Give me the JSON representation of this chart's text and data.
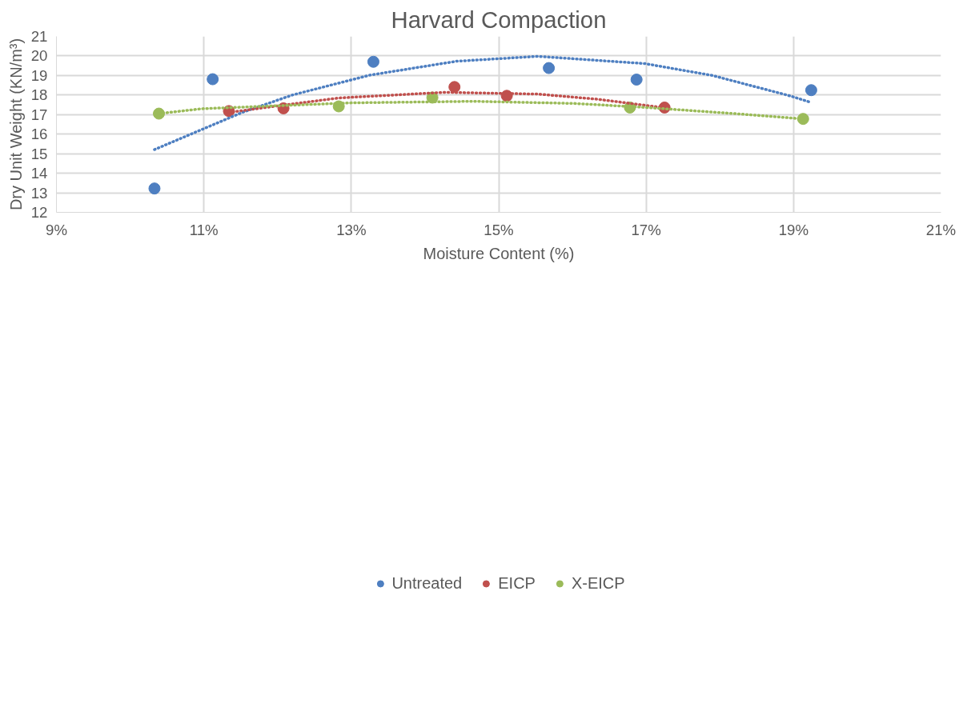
{
  "chart_data": {
    "type": "scatter",
    "title": "Harvard Compaction",
    "xlabel": "Moisture Content (%)",
    "ylabel": "Dry Unit Weight (KN/m³)",
    "xlim": [
      9,
      21
    ],
    "ylim": [
      12,
      21
    ],
    "xticks": [
      {
        "value": 9,
        "label": "9%"
      },
      {
        "value": 11,
        "label": "11%"
      },
      {
        "value": 13,
        "label": "13%"
      },
      {
        "value": 15,
        "label": "15%"
      },
      {
        "value": 17,
        "label": "17%"
      },
      {
        "value": 19,
        "label": "19%"
      },
      {
        "value": 21,
        "label": "21%"
      }
    ],
    "yticks": [
      12,
      13,
      14,
      15,
      16,
      17,
      18,
      19,
      20,
      21
    ],
    "grid": true,
    "legend": "bottom",
    "marker": "circle",
    "series": [
      {
        "name": "Untreated",
        "color": "#4e7fc1",
        "x": [
          10.33,
          11.12,
          13.3,
          15.68,
          16.87,
          19.24
        ],
        "values": [
          13.22,
          18.81,
          19.7,
          19.38,
          18.79,
          18.25
        ]
      },
      {
        "name": "EICP",
        "color": "#c0504d",
        "x": [
          11.34,
          12.08,
          14.4,
          15.11,
          17.25
        ],
        "values": [
          17.18,
          17.32,
          18.41,
          17.96,
          17.36
        ]
      },
      {
        "name": "X-EICP",
        "color": "#9bbb59",
        "x": [
          10.39,
          12.83,
          14.1,
          16.78,
          19.13
        ],
        "values": [
          17.05,
          17.42,
          17.87,
          17.36,
          16.78
        ]
      },
      {
        "type": "line",
        "line_style": "dotted",
        "marker": "none",
        "color": "#4e7fc1",
        "x": [
          10.33,
          11.52,
          12.2,
          13.24,
          14.43,
          15.53,
          16.98,
          17.9,
          18.95,
          19.23
        ],
        "values": [
          15.21,
          17.11,
          18.0,
          19.01,
          19.73,
          19.98,
          19.61,
          19.0,
          17.96,
          17.63
        ]
      },
      {
        "type": "line",
        "line_style": "dotted",
        "marker": "none",
        "color": "#c0504d",
        "x": [
          11.34,
          12.01,
          12.83,
          14.27,
          15.53,
          16.33,
          17.25
        ],
        "values": [
          17.11,
          17.45,
          17.85,
          18.14,
          18.05,
          17.79,
          17.35
        ]
      },
      {
        "type": "line",
        "line_style": "dotted",
        "marker": "none",
        "color": "#9bbb59",
        "x": [
          10.39,
          10.97,
          13.0,
          14.66,
          16.03,
          16.98,
          18.24,
          19.13
        ],
        "values": [
          17.05,
          17.3,
          17.6,
          17.68,
          17.57,
          17.37,
          17.04,
          16.78
        ]
      }
    ]
  }
}
